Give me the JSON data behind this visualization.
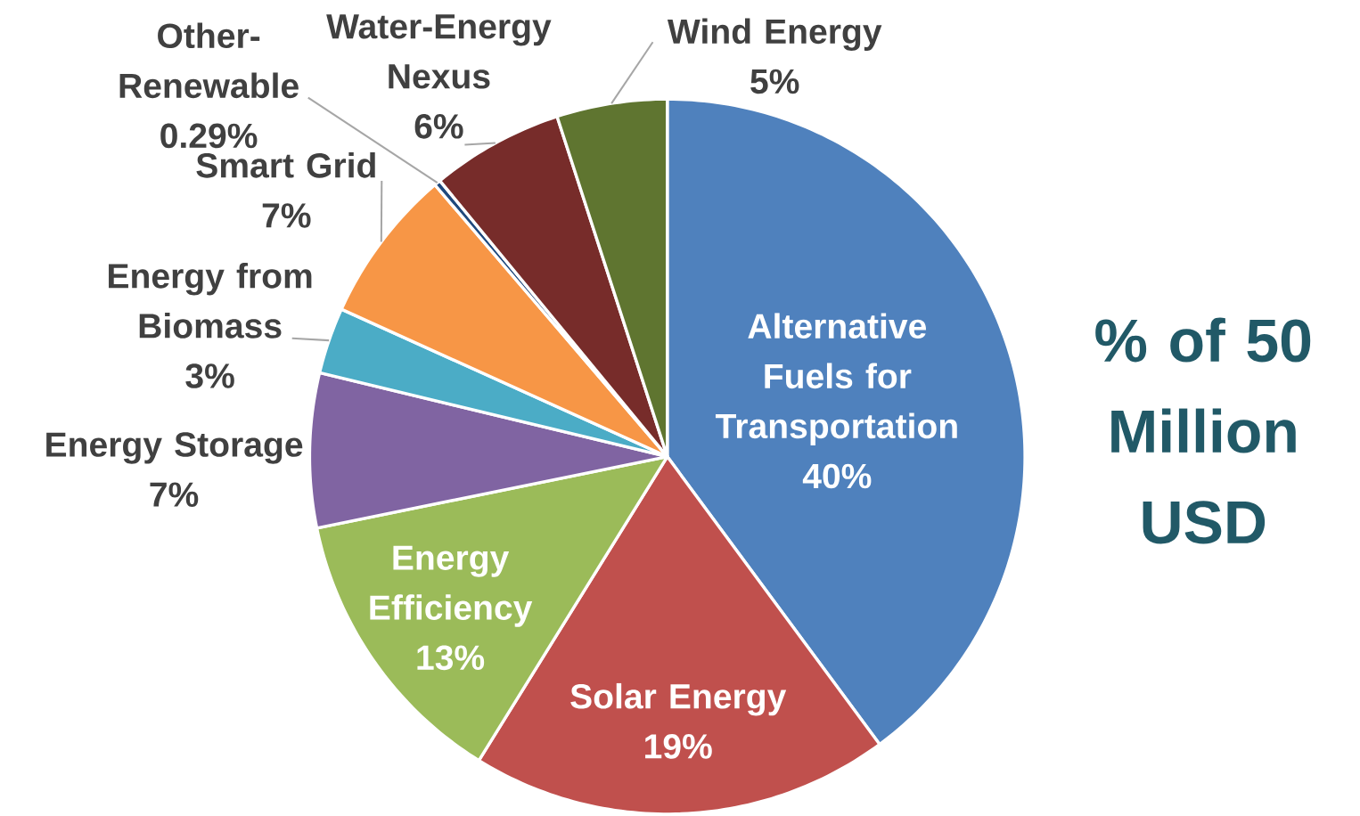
{
  "chart_data": {
    "type": "pie",
    "title": "% of 50 Million USD",
    "categories": [
      "Alternative Fuels for Transportation",
      "Solar Energy",
      "Energy Efficiency",
      "Energy Storage",
      "Energy from Biomass",
      "Smart Grid",
      "Other-Renewable",
      "Water-Energy Nexus",
      "Wind Energy"
    ],
    "values": [
      40,
      19,
      13,
      7,
      3,
      7,
      0.29,
      6,
      5
    ],
    "value_labels": [
      "40%",
      "19%",
      "13%",
      "7%",
      "3%",
      "7%",
      "0.29%",
      "6%",
      "5%"
    ],
    "colors": [
      "#4f81bd",
      "#c0504d",
      "#9bbb59",
      "#8064a2",
      "#4bacc6",
      "#f79646",
      "#1f497d",
      "#772c2a",
      "#5f7530"
    ]
  }
}
